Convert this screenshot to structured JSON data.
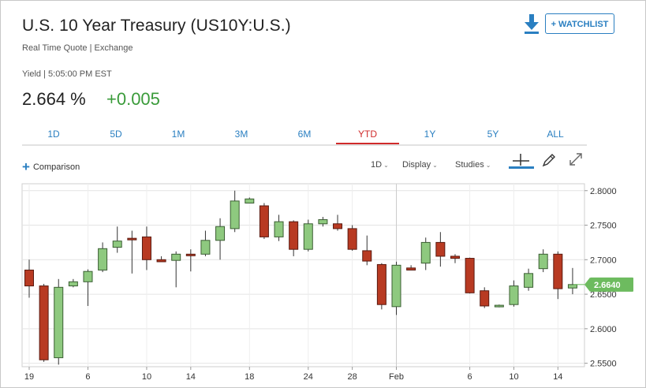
{
  "header": {
    "title": "U.S. 10 Year Treasury (US10Y:U.S.)",
    "subtitle": "Real Time Quote | Exchange",
    "yield_line": "Yield | 5:05:00 PM EST",
    "price": "2.664 %",
    "change": "+0.005",
    "watchlist_label": "+ WATCHLIST",
    "download_icon": "download-arrow-icon"
  },
  "tabs": [
    {
      "label": "1D"
    },
    {
      "label": "5D"
    },
    {
      "label": "1M"
    },
    {
      "label": "3M"
    },
    {
      "label": "6M"
    },
    {
      "label": "YTD",
      "active": true
    },
    {
      "label": "1Y"
    },
    {
      "label": "5Y"
    },
    {
      "label": "ALL"
    }
  ],
  "toolbar": {
    "comparison_label": "Comparison",
    "interval_label": "1D",
    "display_label": "Display",
    "studies_label": "Studies",
    "icons": [
      "crosshair-icon",
      "pencil-icon",
      "expand-icon"
    ]
  },
  "colors": {
    "up": "#8ec97f",
    "down": "#b83a22",
    "accent": "#2a7fc1",
    "active_tab": "#d02b2b",
    "last_price": "#6dbb5f"
  },
  "chart_data": {
    "type": "candlestick",
    "ylim": [
      2.545,
      2.81
    ],
    "yticks": [
      2.8,
      2.75,
      2.7,
      2.65,
      2.6,
      2.55
    ],
    "ytick_labels": [
      "2.8000",
      "2.7500",
      "2.7000",
      "2.6500",
      "2.6000",
      "2.5500"
    ],
    "xtick_labels": [
      {
        "label": "19",
        "i": 0
      },
      {
        "label": "6",
        "i": 4
      },
      {
        "label": "10",
        "i": 8
      },
      {
        "label": "14",
        "i": 11
      },
      {
        "label": "18",
        "i": 15
      },
      {
        "label": "24",
        "i": 19
      },
      {
        "label": "28",
        "i": 22
      },
      {
        "label": "Feb",
        "i": 25
      },
      {
        "label": "6",
        "i": 30
      },
      {
        "label": "10",
        "i": 33
      },
      {
        "label": "14",
        "i": 36
      }
    ],
    "last_value_label": "2.6640",
    "last_value": 2.664,
    "candles": [
      {
        "o": 2.685,
        "h": 2.7,
        "l": 2.645,
        "c": 2.662
      },
      {
        "o": 2.662,
        "h": 2.665,
        "l": 2.552,
        "c": 2.555
      },
      {
        "o": 2.558,
        "h": 2.672,
        "l": 2.548,
        "c": 2.66
      },
      {
        "o": 2.662,
        "h": 2.672,
        "l": 2.66,
        "c": 2.668
      },
      {
        "o": 2.668,
        "h": 2.686,
        "l": 2.633,
        "c": 2.683
      },
      {
        "o": 2.685,
        "h": 2.725,
        "l": 2.682,
        "c": 2.716
      },
      {
        "o": 2.718,
        "h": 2.748,
        "l": 2.71,
        "c": 2.727
      },
      {
        "o": 2.731,
        "h": 2.742,
        "l": 2.68,
        "c": 2.73
      },
      {
        "o": 2.733,
        "h": 2.748,
        "l": 2.685,
        "c": 2.7
      },
      {
        "o": 2.7,
        "h": 2.705,
        "l": 2.697,
        "c": 2.697
      },
      {
        "o": 2.699,
        "h": 2.712,
        "l": 2.66,
        "c": 2.708
      },
      {
        "o": 2.708,
        "h": 2.715,
        "l": 2.683,
        "c": 2.706
      },
      {
        "o": 2.708,
        "h": 2.742,
        "l": 2.705,
        "c": 2.728
      },
      {
        "o": 2.728,
        "h": 2.76,
        "l": 2.7,
        "c": 2.748
      },
      {
        "o": 2.745,
        "h": 2.8,
        "l": 2.74,
        "c": 2.785
      },
      {
        "o": 2.782,
        "h": 2.79,
        "l": 2.783,
        "c": 2.788
      },
      {
        "o": 2.778,
        "h": 2.782,
        "l": 2.73,
        "c": 2.733
      },
      {
        "o": 2.733,
        "h": 2.765,
        "l": 2.727,
        "c": 2.755
      },
      {
        "o": 2.755,
        "h": 2.757,
        "l": 2.705,
        "c": 2.715
      },
      {
        "o": 2.715,
        "h": 2.758,
        "l": 2.712,
        "c": 2.752
      },
      {
        "o": 2.752,
        "h": 2.762,
        "l": 2.748,
        "c": 2.758
      },
      {
        "o": 2.752,
        "h": 2.765,
        "l": 2.742,
        "c": 2.745
      },
      {
        "o": 2.745,
        "h": 2.75,
        "l": 2.713,
        "c": 2.715
      },
      {
        "o": 2.713,
        "h": 2.735,
        "l": 2.692,
        "c": 2.698
      },
      {
        "o": 2.693,
        "h": 2.695,
        "l": 2.628,
        "c": 2.635
      },
      {
        "o": 2.632,
        "h": 2.697,
        "l": 2.62,
        "c": 2.692
      },
      {
        "o": 2.688,
        "h": 2.692,
        "l": 2.686,
        "c": 2.685
      },
      {
        "o": 2.695,
        "h": 2.732,
        "l": 2.685,
        "c": 2.725
      },
      {
        "o": 2.725,
        "h": 2.74,
        "l": 2.69,
        "c": 2.705
      },
      {
        "o": 2.705,
        "h": 2.708,
        "l": 2.695,
        "c": 2.702
      },
      {
        "o": 2.702,
        "h": 2.703,
        "l": 2.651,
        "c": 2.652
      },
      {
        "o": 2.655,
        "h": 2.66,
        "l": 2.63,
        "c": 2.633
      },
      {
        "o": 2.632,
        "h": 2.635,
        "l": 2.631,
        "c": 2.634
      },
      {
        "o": 2.635,
        "h": 2.67,
        "l": 2.632,
        "c": 2.662
      },
      {
        "o": 2.66,
        "h": 2.687,
        "l": 2.655,
        "c": 2.68
      },
      {
        "o": 2.687,
        "h": 2.715,
        "l": 2.682,
        "c": 2.708
      },
      {
        "o": 2.708,
        "h": 2.712,
        "l": 2.643,
        "c": 2.658
      },
      {
        "o": 2.659,
        "h": 2.688,
        "l": 2.65,
        "c": 2.664
      }
    ]
  }
}
